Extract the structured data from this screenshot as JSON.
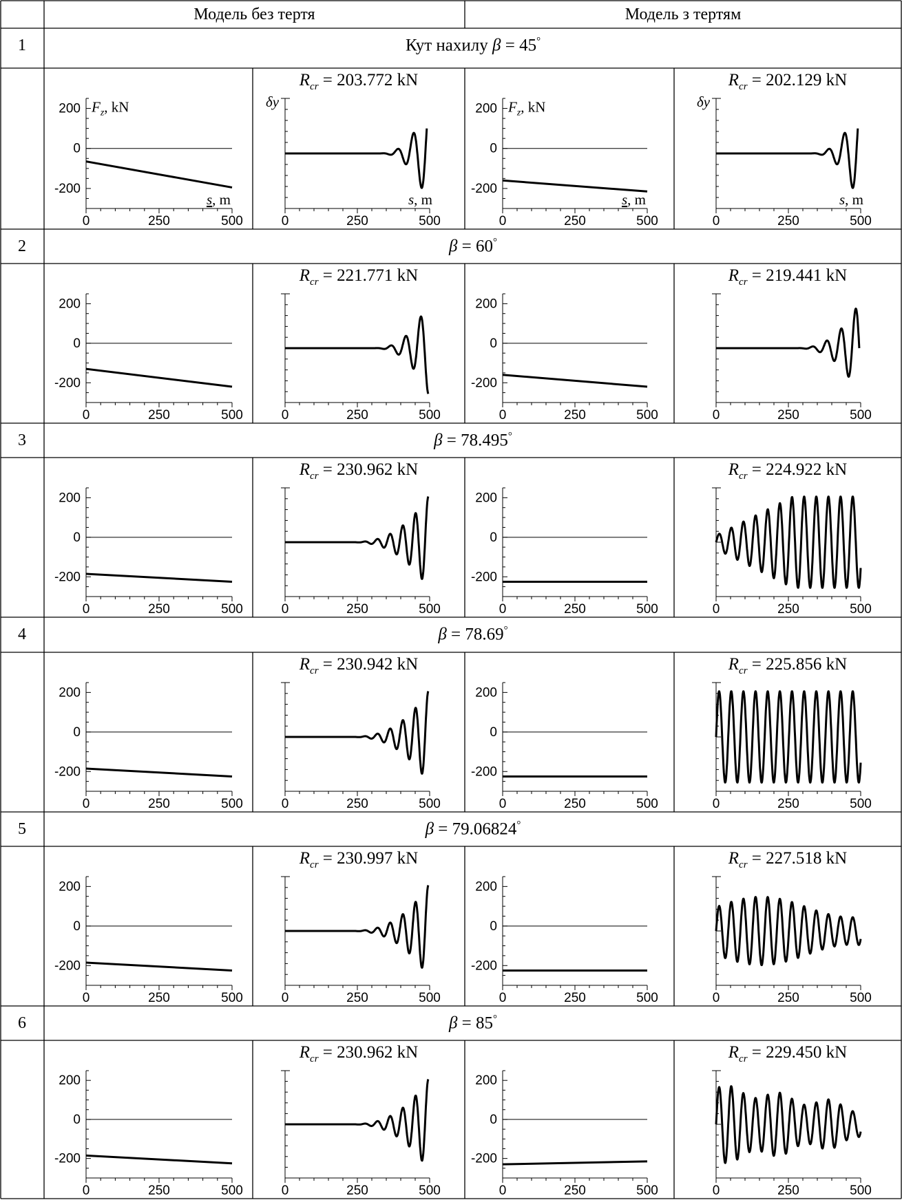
{
  "table": {
    "header": {
      "no_friction": "Модель без тертя",
      "with_friction": "Модель з тертям"
    },
    "rows": [
      {
        "num": "1",
        "beta_prefix": "Кут нахилу ",
        "beta_value": "45",
        "rcr_nf": "203.772",
        "rcr_f": "202.129"
      },
      {
        "num": "2",
        "beta_prefix": "",
        "beta_value": "60",
        "rcr_nf": "221.771",
        "rcr_f": "219.441"
      },
      {
        "num": "3",
        "beta_prefix": "",
        "beta_value": "78.495",
        "rcr_nf": "230.962",
        "rcr_f": "224.922"
      },
      {
        "num": "4",
        "beta_prefix": "",
        "beta_value": "78.69",
        "rcr_nf": "230.942",
        "rcr_f": "225.856"
      },
      {
        "num": "5",
        "beta_prefix": "",
        "beta_value": "79.06824",
        "rcr_nf": "230.997",
        "rcr_f": "227.518"
      },
      {
        "num": "6",
        "beta_prefix": "",
        "beta_value": "85",
        "rcr_nf": "230.962",
        "rcr_f": "229.450"
      }
    ],
    "symbols": {
      "beta": "β",
      "eq": " = ",
      "deg": "°",
      "R": "R",
      "cr": "cr",
      "unit": " kN"
    },
    "axis_labels": {
      "force": "F",
      "force_sub": "z",
      "force_unit": ", kN",
      "dy": "δy",
      "s": "s",
      "m": ", m"
    }
  },
  "chart_data": [
    {
      "type": "line",
      "row": 1,
      "panel": "force-no-friction",
      "x": [
        0,
        500
      ],
      "y": [
        -65,
        -195
      ],
      "ylim": [
        -300,
        250
      ],
      "xlim": [
        0,
        500
      ],
      "yticks": [
        200,
        0,
        -200
      ],
      "xticks": [
        0,
        250,
        500
      ]
    },
    {
      "type": "line",
      "row": 1,
      "panel": "deflection-no-friction",
      "xlim": [
        0,
        500
      ],
      "xticks": [
        0,
        250,
        500
      ],
      "wave": {
        "onset": 320,
        "end": 490,
        "period": 55,
        "growth": "rising",
        "amplitude": 1.0
      }
    },
    {
      "type": "line",
      "row": 1,
      "panel": "force-friction",
      "x": [
        0,
        500
      ],
      "y": [
        -160,
        -215
      ],
      "ylim": [
        -300,
        250
      ],
      "xlim": [
        0,
        500
      ],
      "yticks": [
        200,
        0,
        -200
      ],
      "xticks": [
        0,
        250,
        500
      ]
    },
    {
      "type": "line",
      "row": 1,
      "panel": "deflection-friction",
      "xlim": [
        0,
        500
      ],
      "xticks": [
        0,
        250,
        500
      ],
      "wave": {
        "onset": 320,
        "end": 490,
        "period": 55,
        "growth": "rising",
        "amplitude": 1.0
      }
    },
    {
      "type": "line",
      "row": 2,
      "panel": "force-no-friction",
      "x": [
        0,
        500
      ],
      "y": [
        -130,
        -220
      ],
      "ylim": [
        -300,
        250
      ],
      "xlim": [
        0,
        500
      ],
      "yticks": [
        200,
        0,
        -200
      ],
      "xticks": [
        0,
        250,
        500
      ]
    },
    {
      "type": "line",
      "row": 2,
      "panel": "deflection-no-friction",
      "xlim": [
        0,
        500
      ],
      "xticks": [
        0,
        250,
        500
      ],
      "wave": {
        "onset": 300,
        "end": 495,
        "period": 52,
        "growth": "rising",
        "amplitude": 1.0
      }
    },
    {
      "type": "line",
      "row": 2,
      "panel": "force-friction",
      "x": [
        0,
        500
      ],
      "y": [
        -160,
        -220
      ],
      "ylim": [
        -300,
        250
      ],
      "xlim": [
        0,
        500
      ],
      "yticks": [
        200,
        0,
        -200
      ],
      "xticks": [
        0,
        250,
        500
      ]
    },
    {
      "type": "line",
      "row": 2,
      "panel": "deflection-friction",
      "xlim": [
        0,
        500
      ],
      "xticks": [
        0,
        250,
        500
      ],
      "wave": {
        "onset": 270,
        "end": 495,
        "period": 50,
        "growth": "rising",
        "amplitude": 1.0
      }
    },
    {
      "type": "line",
      "row": 3,
      "panel": "force-no-friction",
      "x": [
        0,
        500
      ],
      "y": [
        -185,
        -225
      ],
      "ylim": [
        -300,
        250
      ],
      "xlim": [
        0,
        500
      ],
      "yticks": [
        200,
        0,
        -200
      ],
      "xticks": [
        0,
        250,
        500
      ]
    },
    {
      "type": "line",
      "row": 3,
      "panel": "deflection-no-friction",
      "xlim": [
        0,
        500
      ],
      "xticks": [
        0,
        250,
        500
      ],
      "wave": {
        "onset": 220,
        "end": 495,
        "period": 44,
        "growth": "rising",
        "amplitude": 1.0
      }
    },
    {
      "type": "line",
      "row": 3,
      "panel": "force-friction",
      "x": [
        0,
        500
      ],
      "y": [
        -225,
        -225
      ],
      "ylim": [
        -300,
        250
      ],
      "xlim": [
        0,
        500
      ],
      "yticks": [
        200,
        0,
        -200
      ],
      "xticks": [
        0,
        250,
        500
      ]
    },
    {
      "type": "line",
      "row": 3,
      "panel": "deflection-friction",
      "xlim": [
        0,
        500
      ],
      "xticks": [
        0,
        250,
        500
      ],
      "wave": {
        "onset": 0,
        "end": 500,
        "period": 42,
        "growth": "saturating",
        "amplitude": 1.0
      }
    },
    {
      "type": "line",
      "row": 4,
      "panel": "force-no-friction",
      "x": [
        0,
        500
      ],
      "y": [
        -185,
        -225
      ],
      "ylim": [
        -300,
        250
      ],
      "xlim": [
        0,
        500
      ],
      "yticks": [
        200,
        0,
        -200
      ],
      "xticks": [
        0,
        250,
        500
      ]
    },
    {
      "type": "line",
      "row": 4,
      "panel": "deflection-no-friction",
      "xlim": [
        0,
        500
      ],
      "xticks": [
        0,
        250,
        500
      ],
      "wave": {
        "onset": 220,
        "end": 495,
        "period": 44,
        "growth": "rising",
        "amplitude": 1.0
      }
    },
    {
      "type": "line",
      "row": 4,
      "panel": "force-friction",
      "x": [
        0,
        500
      ],
      "y": [
        -225,
        -225
      ],
      "ylim": [
        -300,
        250
      ],
      "xlim": [
        0,
        500
      ],
      "yticks": [
        200,
        0,
        -200
      ],
      "xticks": [
        0,
        250,
        500
      ]
    },
    {
      "type": "line",
      "row": 4,
      "panel": "deflection-friction",
      "xlim": [
        0,
        500
      ],
      "xticks": [
        0,
        250,
        500
      ],
      "wave": {
        "onset": 0,
        "end": 500,
        "period": 42,
        "growth": "constant",
        "amplitude": 1.0
      }
    },
    {
      "type": "line",
      "row": 5,
      "panel": "force-no-friction",
      "x": [
        0,
        500
      ],
      "y": [
        -185,
        -225
      ],
      "ylim": [
        -300,
        250
      ],
      "xlim": [
        0,
        500
      ],
      "yticks": [
        200,
        0,
        -200
      ],
      "xticks": [
        0,
        250,
        500
      ]
    },
    {
      "type": "line",
      "row": 5,
      "panel": "deflection-no-friction",
      "xlim": [
        0,
        500
      ],
      "xticks": [
        0,
        250,
        500
      ],
      "wave": {
        "onset": 220,
        "end": 495,
        "period": 44,
        "growth": "rising",
        "amplitude": 1.0
      }
    },
    {
      "type": "line",
      "row": 5,
      "panel": "force-friction",
      "x": [
        0,
        500
      ],
      "y": [
        -225,
        -225
      ],
      "ylim": [
        -300,
        250
      ],
      "xlim": [
        0,
        500
      ],
      "yticks": [
        200,
        0,
        -200
      ],
      "xticks": [
        0,
        250,
        500
      ]
    },
    {
      "type": "line",
      "row": 5,
      "panel": "deflection-friction",
      "xlim": [
        0,
        500
      ],
      "xticks": [
        0,
        250,
        500
      ],
      "wave": {
        "onset": 0,
        "end": 500,
        "period": 42,
        "growth": "modulated",
        "amplitude": 0.75
      }
    },
    {
      "type": "line",
      "row": 6,
      "panel": "force-no-friction",
      "x": [
        0,
        500
      ],
      "y": [
        -185,
        -225
      ],
      "ylim": [
        -300,
        250
      ],
      "xlim": [
        0,
        500
      ],
      "yticks": [
        200,
        0,
        -200
      ],
      "xticks": [
        0,
        250,
        500
      ]
    },
    {
      "type": "line",
      "row": 6,
      "panel": "deflection-no-friction",
      "xlim": [
        0,
        500
      ],
      "xticks": [
        0,
        250,
        500
      ],
      "wave": {
        "onset": 220,
        "end": 495,
        "period": 44,
        "growth": "rising",
        "amplitude": 1.0
      }
    },
    {
      "type": "line",
      "row": 6,
      "panel": "force-friction",
      "x": [
        0,
        500
      ],
      "y": [
        -230,
        -215
      ],
      "ylim": [
        -300,
        250
      ],
      "xlim": [
        0,
        500
      ],
      "yticks": [
        200,
        0,
        -200
      ],
      "xticks": [
        0,
        250,
        500
      ]
    },
    {
      "type": "line",
      "row": 6,
      "panel": "deflection-friction",
      "xlim": [
        0,
        500
      ],
      "xticks": [
        0,
        250,
        500
      ],
      "wave": {
        "onset": 0,
        "end": 500,
        "period": 42,
        "growth": "decaying",
        "amplitude": 0.8
      }
    }
  ]
}
